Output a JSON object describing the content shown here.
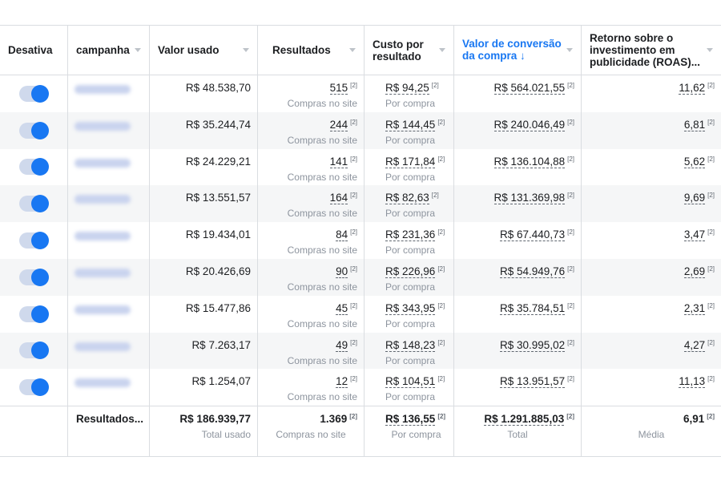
{
  "columns": {
    "toggle": "Desativa",
    "campaign": "campanha",
    "spent": "Valor usado",
    "results": "Resultados",
    "cost": "Custo por resultado",
    "conv_value": "Valor de conversão da compra ↓",
    "roas": "Retorno sobre o investimento em publicidade (ROAS)..."
  },
  "rows": [
    {
      "spent": "R$ 48.538,70",
      "results": "515",
      "results_sub": "Compras no site",
      "cost": "R$ 94,25",
      "cost_sub": "Por compra",
      "conv": "R$ 564.021,55",
      "roas": "11,62"
    },
    {
      "spent": "R$ 35.244,74",
      "results": "244",
      "results_sub": "Compras no site",
      "cost": "R$ 144,45",
      "cost_sub": "Por compra",
      "conv": "R$ 240.046,49",
      "roas": "6,81"
    },
    {
      "spent": "R$ 24.229,21",
      "results": "141",
      "results_sub": "Compras no site",
      "cost": "R$ 171,84",
      "cost_sub": "Por compra",
      "conv": "R$ 136.104,88",
      "roas": "5,62"
    },
    {
      "spent": "R$ 13.551,57",
      "results": "164",
      "results_sub": "Compras no site",
      "cost": "R$ 82,63",
      "cost_sub": "Por compra",
      "conv": "R$ 131.369,98",
      "roas": "9,69"
    },
    {
      "spent": "R$ 19.434,01",
      "results": "84",
      "results_sub": "Compras no site",
      "cost": "R$ 231,36",
      "cost_sub": "Por compra",
      "conv": "R$ 67.440,73",
      "roas": "3,47"
    },
    {
      "spent": "R$ 20.426,69",
      "results": "90",
      "results_sub": "Compras no site",
      "cost": "R$ 226,96",
      "cost_sub": "Por compra",
      "conv": "R$ 54.949,76",
      "roas": "2,69"
    },
    {
      "spent": "R$ 15.477,86",
      "results": "45",
      "results_sub": "Compras no site",
      "cost": "R$ 343,95",
      "cost_sub": "Por compra",
      "conv": "R$ 35.784,51",
      "roas": "2,31"
    },
    {
      "spent": "R$ 7.263,17",
      "results": "49",
      "results_sub": "Compras no site",
      "cost": "R$ 148,23",
      "cost_sub": "Por compra",
      "conv": "R$ 30.995,02",
      "roas": "4,27"
    },
    {
      "spent": "R$ 1.254,07",
      "results": "12",
      "results_sub": "Compras no site",
      "cost": "R$ 104,51",
      "cost_sub": "Por compra",
      "conv": "R$ 13.951,57",
      "roas": "11,13"
    }
  ],
  "attribution_marker": "[2]",
  "totals": {
    "label": "Resultados...",
    "spent": "R$ 186.939,77",
    "spent_sub": "Total usado",
    "results": "1.369",
    "results_sub": "Compras no site",
    "cost": "R$ 136,55",
    "cost_sub": "Por compra",
    "conv": "R$ 1.291.885,03",
    "conv_sub": "Total",
    "roas": "6,91",
    "roas_sub": "Média"
  },
  "colors": {
    "accent": "#1877f2",
    "row_alt": "#f5f6f7",
    "toggle_track": "#cfd9ec",
    "muted_text": "#8d949e"
  }
}
